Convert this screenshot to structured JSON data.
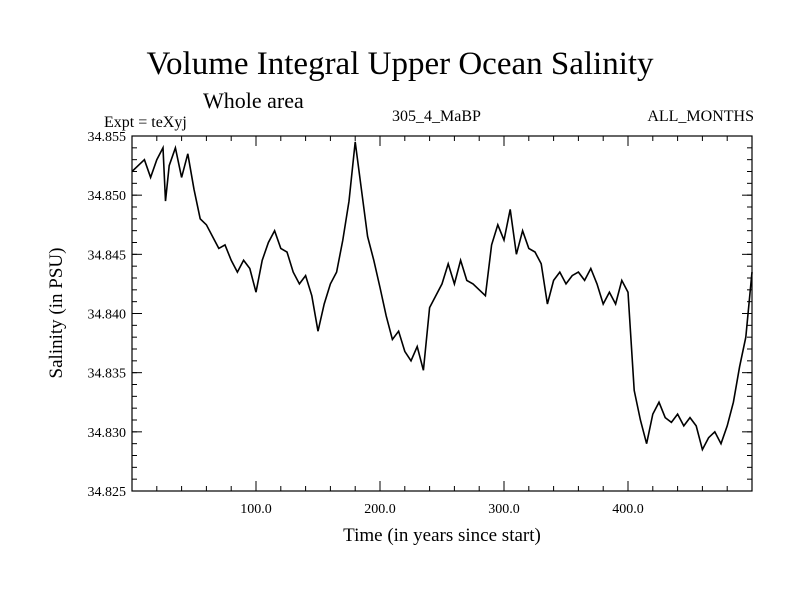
{
  "header": {
    "title": "Volume Integral Upper Ocean Salinity",
    "subtitle": "Whole area",
    "left_label": "Expt = teXyj",
    "center_label": "305_4_MaBP",
    "right_label": "ALL_MONTHS"
  },
  "chart_data": {
    "type": "line",
    "title": "Volume Integral Upper Ocean Salinity",
    "subtitle": "Whole area",
    "xlabel": "Time (in years since start)",
    "ylabel": "Salinity (in PSU)",
    "xlim": [
      0,
      500
    ],
    "ylim": [
      34.825,
      34.855
    ],
    "x_ticks": [
      100,
      200,
      300,
      400
    ],
    "x_tick_labels": [
      "100.0",
      "200.0",
      "300.0",
      "400.0"
    ],
    "y_ticks": [
      34.825,
      34.83,
      34.835,
      34.84,
      34.845,
      34.85,
      34.855
    ],
    "y_tick_labels": [
      "34.825",
      "34.830",
      "34.835",
      "34.840",
      "34.845",
      "34.850",
      "34.855"
    ],
    "grid": false,
    "series": [
      {
        "color": "#000000",
        "x": [
          0,
          5,
          10,
          15,
          20,
          25,
          27,
          30,
          35,
          40,
          45,
          50,
          55,
          60,
          65,
          70,
          75,
          80,
          85,
          90,
          95,
          100,
          105,
          110,
          115,
          120,
          125,
          130,
          135,
          140,
          145,
          150,
          155,
          160,
          165,
          170,
          175,
          180,
          185,
          190,
          195,
          200,
          205,
          210,
          215,
          220,
          225,
          230,
          235,
          240,
          245,
          250,
          255,
          260,
          265,
          270,
          275,
          280,
          285,
          290,
          295,
          300,
          305,
          310,
          315,
          320,
          325,
          330,
          335,
          340,
          345,
          350,
          355,
          360,
          365,
          370,
          375,
          380,
          385,
          390,
          395,
          400,
          405,
          410,
          415,
          420,
          425,
          430,
          435,
          440,
          445,
          450,
          455,
          460,
          465,
          470,
          475,
          480,
          485,
          490,
          495,
          500
        ],
        "values": [
          34.852,
          34.8525,
          34.853,
          34.8515,
          34.853,
          34.854,
          34.8495,
          34.8525,
          34.854,
          34.8515,
          34.8535,
          34.8505,
          34.848,
          34.8475,
          34.8465,
          34.8455,
          34.8458,
          34.8445,
          34.8435,
          34.8445,
          34.8438,
          34.8418,
          34.8445,
          34.846,
          34.847,
          34.8455,
          34.8452,
          34.8435,
          34.8425,
          34.8432,
          34.8415,
          34.8385,
          34.8408,
          34.8425,
          34.8435,
          34.8462,
          34.8495,
          34.8545,
          34.8505,
          34.8465,
          34.8445,
          34.8422,
          34.8398,
          34.8378,
          34.8385,
          34.8368,
          34.836,
          34.8372,
          34.8352,
          34.8405,
          34.8415,
          34.8425,
          34.8442,
          34.8425,
          34.8445,
          34.8428,
          34.8425,
          34.842,
          34.8415,
          34.8458,
          34.8475,
          34.8462,
          34.8488,
          34.845,
          34.847,
          34.8455,
          34.8452,
          34.8442,
          34.8408,
          34.8428,
          34.8435,
          34.8425,
          34.8432,
          34.8435,
          34.8428,
          34.8438,
          34.8425,
          34.8408,
          34.8418,
          34.8408,
          34.8428,
          34.8418,
          34.8335,
          34.831,
          34.829,
          34.8315,
          34.8325,
          34.8312,
          34.8308,
          34.8315,
          34.8305,
          34.8312,
          34.8305,
          34.8285,
          34.8295,
          34.83,
          34.829,
          34.8305,
          34.8325,
          34.8355,
          34.838,
          34.8435
        ]
      }
    ]
  }
}
